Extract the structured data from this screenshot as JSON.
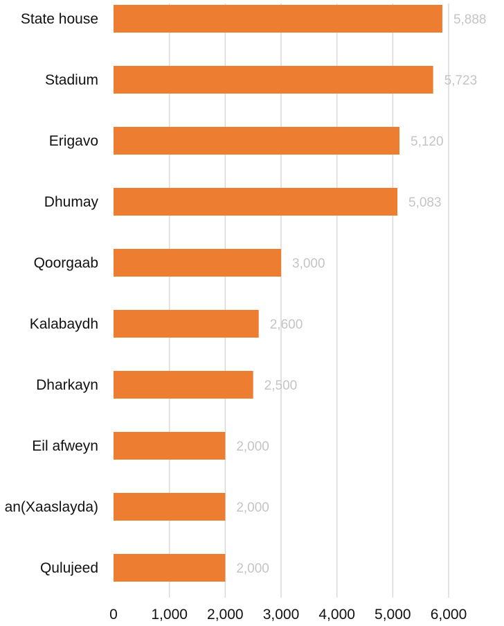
{
  "chart_data": {
    "type": "bar",
    "orientation": "horizontal",
    "title": "",
    "xlabel": "",
    "ylabel": "",
    "categories": [
      "State house",
      "Stadium",
      "Erigavo",
      "Dhumay",
      "Qoorgaab",
      "Kalabaydh",
      "Dharkayn",
      "Eil afweyn",
      "an(Xaaslayda)",
      "Qulujeed"
    ],
    "values": [
      5888,
      5723,
      5120,
      5083,
      3000,
      2600,
      2500,
      2000,
      2000,
      2000
    ],
    "value_labels": [
      "5,888",
      "5,723",
      "5,120",
      "5,083",
      "3,000",
      "2,600",
      "2,500",
      "2,000",
      "2,000",
      "2,000"
    ],
    "xlim": [
      0,
      6000
    ],
    "xticks": [
      0,
      1000,
      2000,
      3000,
      4000,
      5000,
      6000
    ],
    "xtick_labels": [
      "0",
      "1,000",
      "2,000",
      "3,000",
      "4,000",
      "5,000",
      "6,000"
    ],
    "grid": "vertical",
    "legend": "none",
    "colors": {
      "bar": "#ED7D31",
      "grid": "#d9d9d9",
      "value_label": "#c4c4c4",
      "text": "#111111"
    }
  }
}
